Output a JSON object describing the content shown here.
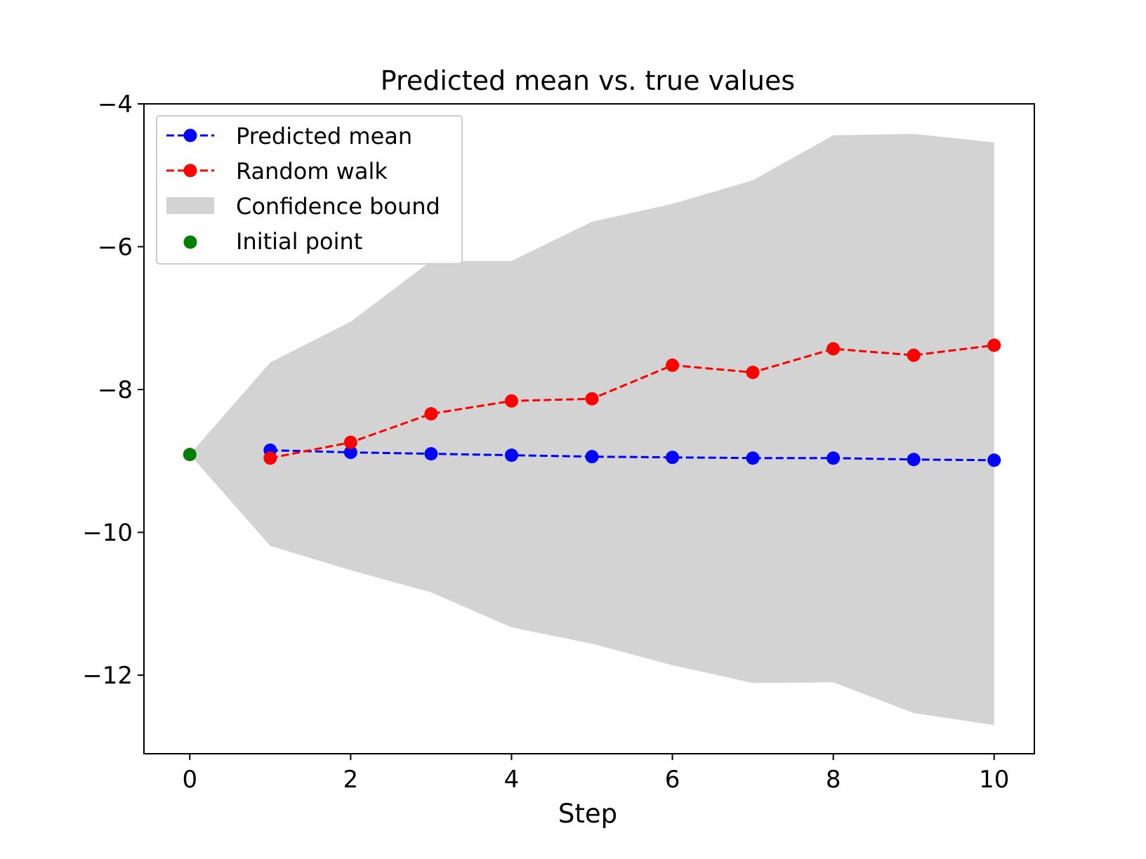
{
  "chart_data": {
    "type": "line",
    "title": "Predicted mean vs. true values",
    "xlabel": "Step",
    "ylabel": "",
    "xlim": [
      -0.57,
      10.5
    ],
    "ylim": [
      -13.1,
      -4.0
    ],
    "xticks": [
      0,
      2,
      4,
      6,
      8,
      10
    ],
    "yticks": [
      -4,
      -6,
      -8,
      -10,
      -12
    ],
    "xtick_labels": [
      "0",
      "2",
      "4",
      "6",
      "8",
      "10"
    ],
    "ytick_labels": [
      "−4",
      "−6",
      "−8",
      "−10",
      "−12"
    ],
    "grid": false,
    "legend_position": "top-left",
    "series": [
      {
        "name": "Predicted mean",
        "kind": "line",
        "color": "#0000ff",
        "linestyle": "dashed",
        "marker": "circle",
        "x": [
          1,
          2,
          3,
          4,
          5,
          6,
          7,
          8,
          9,
          10
        ],
        "y": [
          -8.85,
          -8.88,
          -8.9,
          -8.92,
          -8.94,
          -8.95,
          -8.96,
          -8.96,
          -8.98,
          -8.99
        ]
      },
      {
        "name": "Random walk",
        "kind": "line",
        "color": "#ff0000",
        "linestyle": "dashed",
        "marker": "circle",
        "x": [
          1,
          2,
          3,
          4,
          5,
          6,
          7,
          8,
          9,
          10
        ],
        "y": [
          -8.96,
          -8.74,
          -8.34,
          -8.16,
          -8.13,
          -7.66,
          -7.76,
          -7.43,
          -7.52,
          -7.38
        ]
      },
      {
        "name": "Confidence bound",
        "kind": "band",
        "color": "#d3d3d3",
        "x": [
          0,
          1,
          2,
          3,
          4,
          5,
          6,
          7,
          8,
          9,
          10
        ],
        "upper": [
          -8.91,
          -7.62,
          -7.05,
          -6.2,
          -6.2,
          -5.65,
          -5.4,
          -5.07,
          -4.44,
          -4.42,
          -4.54
        ],
        "lower": [
          -8.91,
          -10.19,
          -10.53,
          -10.84,
          -11.33,
          -11.56,
          -11.86,
          -12.11,
          -12.1,
          -12.53,
          -12.7
        ]
      },
      {
        "name": "Initial point",
        "kind": "scatter",
        "color": "#008000",
        "x": [
          0
        ],
        "y": [
          -8.91
        ]
      }
    ]
  }
}
